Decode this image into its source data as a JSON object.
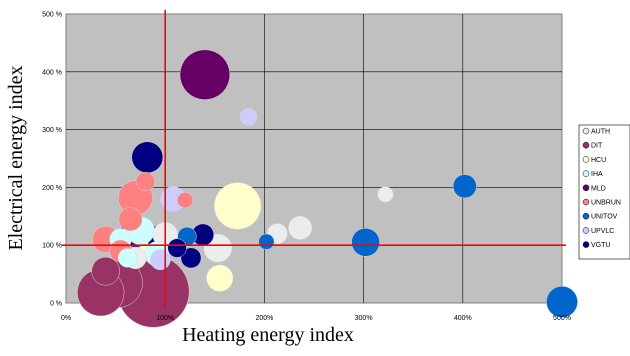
{
  "chart_data": {
    "type": "scatter",
    "subtype": "bubble",
    "xlabel": "Heating energy index",
    "ylabel": "Electrical energy index",
    "xlim": [
      0,
      500
    ],
    "ylim": [
      0,
      500
    ],
    "x_ticks": [
      "0%",
      "100%",
      "200%",
      "300%",
      "400%",
      "500%"
    ],
    "y_ticks": [
      "0 %",
      "100 %",
      "200 %",
      "300 %",
      "400 %",
      "500 %"
    ],
    "grid": true,
    "plot_background": "#c0c0c0",
    "reference_lines": {
      "x": 100,
      "y": 100,
      "color": "#ff0000"
    },
    "legend_position": "right",
    "series": [
      {
        "name": "AUTH",
        "color": "#ececec",
        "points": [
          {
            "x": 322,
            "y": 188,
            "size": 1.0
          },
          {
            "x": 236,
            "y": 130,
            "size": 1.5
          },
          {
            "x": 213,
            "y": 120,
            "size": 1.3
          },
          {
            "x": 153,
            "y": 95,
            "size": 1.8
          },
          {
            "x": 100,
            "y": 118,
            "size": 1.6
          },
          {
            "x": 70,
            "y": 78,
            "size": 1.4
          }
        ]
      },
      {
        "name": "DIT",
        "color": "#993366",
        "points": [
          {
            "x": 88,
            "y": 20,
            "size": 4.6
          },
          {
            "x": 52,
            "y": 35,
            "size": 3.2
          },
          {
            "x": 40,
            "y": 55,
            "size": 1.8
          },
          {
            "x": 35,
            "y": 18,
            "size": 3.0
          }
        ]
      },
      {
        "name": "HCU",
        "color": "#ffffcc",
        "points": [
          {
            "x": 173,
            "y": 168,
            "size": 3.0
          },
          {
            "x": 155,
            "y": 43,
            "size": 1.7
          },
          {
            "x": 90,
            "y": 95,
            "size": 2.0
          }
        ]
      },
      {
        "name": "IHA",
        "color": "#ccffff",
        "points": [
          {
            "x": 92,
            "y": 85,
            "size": 1.6
          },
          {
            "x": 75,
            "y": 125,
            "size": 1.8
          },
          {
            "x": 55,
            "y": 110,
            "size": 1.4
          },
          {
            "x": 62,
            "y": 78,
            "size": 1.2
          }
        ]
      },
      {
        "name": "MLD",
        "color": "#660066",
        "points": [
          {
            "x": 140,
            "y": 395,
            "size": 3.2
          }
        ]
      },
      {
        "name": "UNBRUN",
        "color": "#ff8080",
        "points": [
          {
            "x": 70,
            "y": 182,
            "size": 2.2
          },
          {
            "x": 120,
            "y": 178,
            "size": 1.0
          },
          {
            "x": 40,
            "y": 110,
            "size": 1.7
          },
          {
            "x": 65,
            "y": 145,
            "size": 1.5
          },
          {
            "x": 55,
            "y": 90,
            "size": 1.4
          },
          {
            "x": 80,
            "y": 210,
            "size": 1.2
          }
        ]
      },
      {
        "name": "UNITOV",
        "color": "#0066cc",
        "points": [
          {
            "x": 402,
            "y": 202,
            "size": 1.5
          },
          {
            "x": 302,
            "y": 105,
            "size": 1.8
          },
          {
            "x": 202,
            "y": 106,
            "size": 1.0
          },
          {
            "x": 500,
            "y": 2,
            "size": 2.0
          },
          {
            "x": 122,
            "y": 115,
            "size": 1.2
          }
        ]
      },
      {
        "name": "UPVLC",
        "color": "#ccccff",
        "points": [
          {
            "x": 184,
            "y": 322,
            "size": 1.1
          },
          {
            "x": 108,
            "y": 180,
            "size": 1.6
          },
          {
            "x": 95,
            "y": 75,
            "size": 1.3
          }
        ]
      },
      {
        "name": "VGTU",
        "color": "#000080",
        "points": [
          {
            "x": 82,
            "y": 252,
            "size": 2.0
          },
          {
            "x": 70,
            "y": 122,
            "size": 1.9
          },
          {
            "x": 98,
            "y": 110,
            "size": 2.0
          },
          {
            "x": 138,
            "y": 118,
            "size": 1.4
          },
          {
            "x": 126,
            "y": 78,
            "size": 1.3
          },
          {
            "x": 112,
            "y": 95,
            "size": 1.2
          }
        ]
      }
    ]
  }
}
